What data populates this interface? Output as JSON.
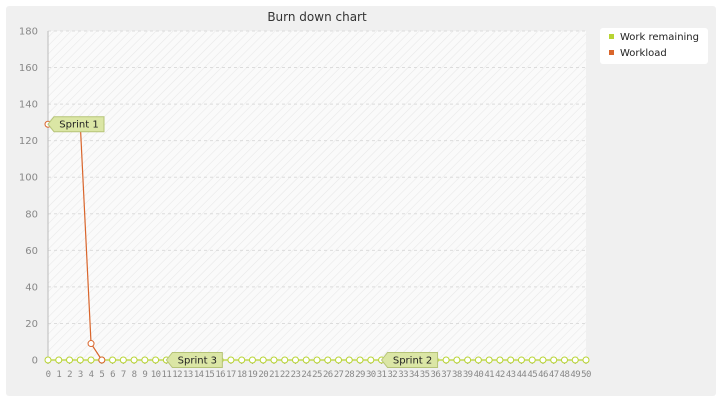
{
  "chart_data": {
    "type": "line",
    "title": "Burn down chart",
    "xlabel": "",
    "ylabel": "",
    "xlim": [
      0,
      50
    ],
    "ylim": [
      0,
      180
    ],
    "yticks": [
      0,
      20,
      40,
      60,
      80,
      100,
      120,
      140,
      160,
      180
    ],
    "xticks": [
      0,
      1,
      2,
      3,
      4,
      5,
      6,
      7,
      8,
      9,
      10,
      11,
      12,
      13,
      14,
      15,
      16,
      17,
      18,
      19,
      20,
      21,
      22,
      23,
      24,
      25,
      26,
      27,
      28,
      29,
      30,
      31,
      32,
      33,
      34,
      35,
      36,
      37,
      38,
      39,
      40,
      41,
      42,
      43,
      44,
      45,
      46,
      47,
      48,
      49,
      50
    ],
    "grid": true,
    "legend_position": "top-right",
    "series": [
      {
        "name": "Work remaining",
        "color": "#b8d432",
        "x": [
          0,
          1,
          2,
          3,
          4,
          5,
          6,
          7,
          8,
          9,
          10,
          11,
          12,
          13,
          14,
          15,
          16,
          17,
          18,
          19,
          20,
          21,
          22,
          23,
          24,
          25,
          26,
          27,
          28,
          29,
          30,
          31,
          32,
          33,
          34,
          35,
          36,
          37,
          38,
          39,
          40,
          41,
          42,
          43,
          44,
          45,
          46,
          47,
          48,
          49,
          50
        ],
        "y": [
          0,
          0,
          0,
          0,
          0,
          0,
          0,
          0,
          0,
          0,
          0,
          0,
          0,
          0,
          0,
          0,
          0,
          0,
          0,
          0,
          0,
          0,
          0,
          0,
          0,
          0,
          0,
          0,
          0,
          0,
          0,
          0,
          0,
          0,
          0,
          0,
          0,
          0,
          0,
          0,
          0,
          0,
          0,
          0,
          0,
          0,
          0,
          0,
          0,
          0,
          0
        ]
      },
      {
        "name": "Workload",
        "color": "#d9652b",
        "x": [
          0,
          3,
          4,
          5
        ],
        "y": [
          129,
          129,
          9,
          0
        ]
      }
    ],
    "annotations": [
      {
        "label": "Sprint 1",
        "x": 0,
        "y": 129
      },
      {
        "label": "Sprint 3",
        "x": 11,
        "y": 0
      },
      {
        "label": "Sprint 2",
        "x": 31,
        "y": 0
      }
    ]
  }
}
